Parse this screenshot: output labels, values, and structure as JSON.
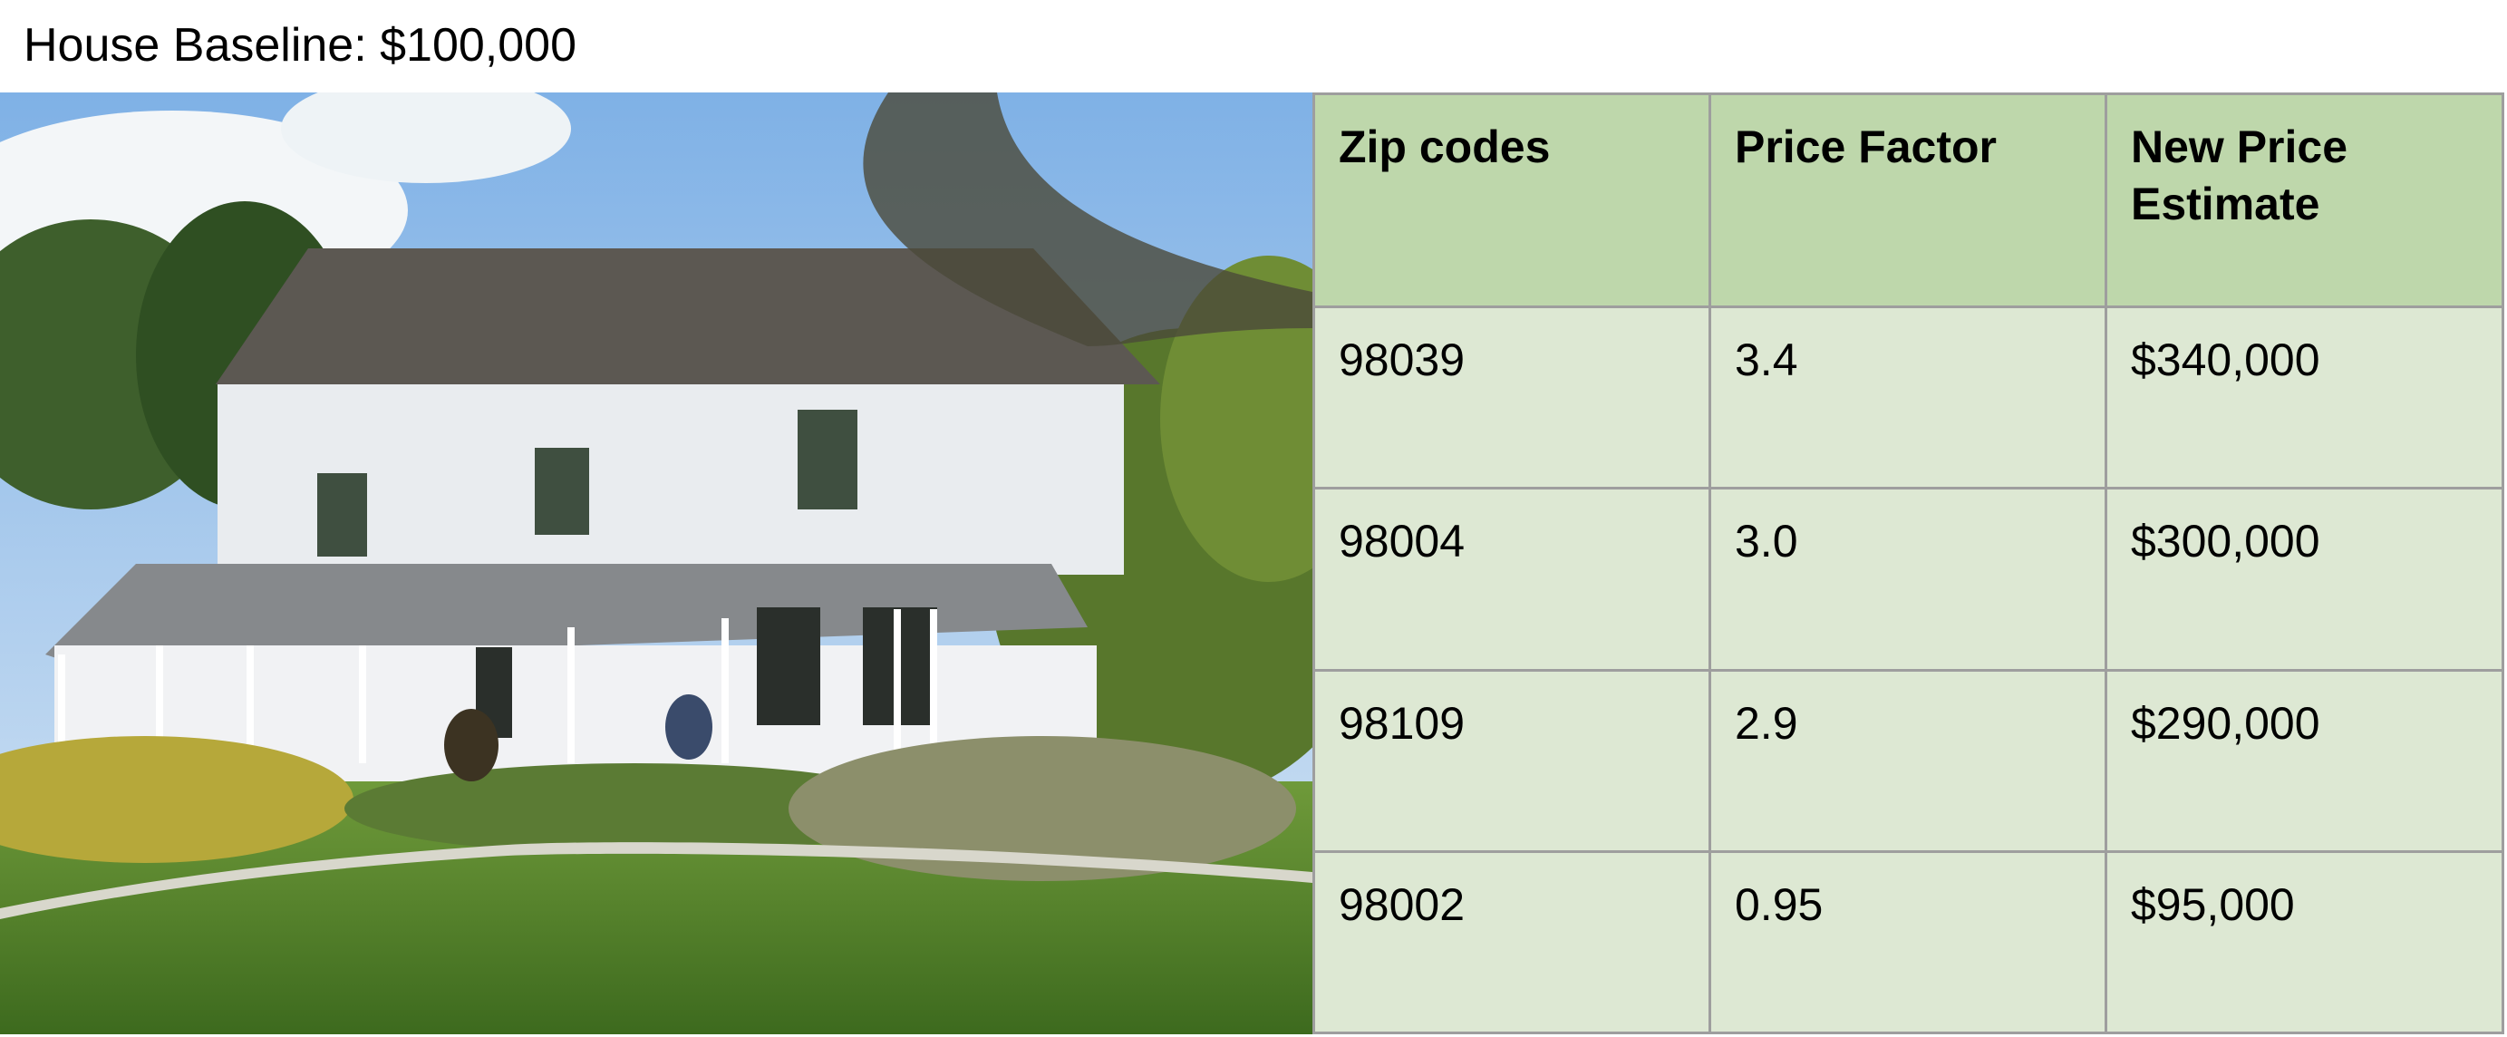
{
  "header": {
    "title": "House Baseline: $100,000"
  },
  "photo": {
    "subject": "house-photo"
  },
  "table": {
    "columns": [
      "Zip codes",
      "Price Factor",
      "New Price Estimate"
    ],
    "rows": [
      [
        "98039",
        "3.4",
        "$340,000"
      ],
      [
        "98004",
        "3.0",
        "$300,000"
      ],
      [
        "98109",
        "2.9",
        "$290,000"
      ],
      [
        "98002",
        "0.95",
        "$95,000"
      ]
    ]
  },
  "colors": {
    "header_fill": "#bed7ab",
    "cell_fill": "#dde8d3",
    "border": "#9e9e9e"
  }
}
